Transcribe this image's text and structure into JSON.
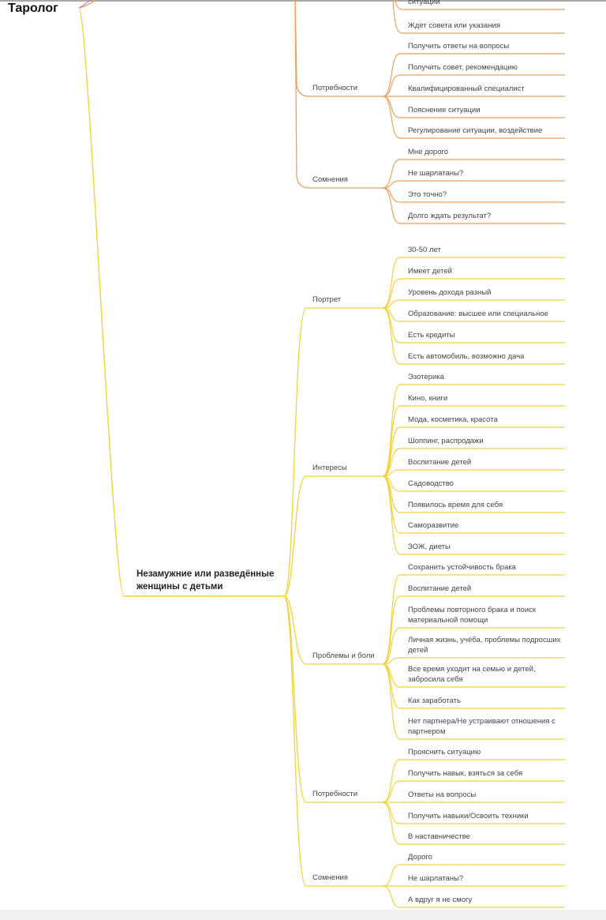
{
  "root": {
    "label": "Таролог"
  },
  "colors": {
    "orange": "#e8a25c",
    "yellow": "#efd23a",
    "text": "#444444"
  },
  "orange_branch": {
    "prefix_leaves": [
      "ситуации",
      "Ждет совета или указания"
    ],
    "groups": [
      {
        "label": "Потребности",
        "leaves": [
          "Получить ответы на вопросы",
          "Получить совет, рекомендацию",
          "Квалифицированный специалист",
          "Пояснение ситуации",
          "Регулирование ситуации, воздействие"
        ]
      },
      {
        "label": "Сомнения",
        "leaves": [
          "Мне дорого",
          "Не шарлатаны?",
          "Это точно?",
          "Долго ждать результат?"
        ]
      }
    ]
  },
  "yellow_branch": {
    "label": "Незамужние или разведённые женщины с детьми",
    "groups": [
      {
        "label": "Портрет",
        "leaves": [
          "30-50 лет",
          "Имеет детей",
          "Уровень дохода разный",
          "Образование: высшее или специальное",
          "Есть кредиты",
          "Есть автомобиль, возможно дача"
        ]
      },
      {
        "label": "Интересы",
        "leaves": [
          "Эзотерика",
          "Кино, книги",
          "Мода, косметика, красота",
          "Шоппинг, распродажи",
          "Воспитание детей",
          "Садоводство",
          "Появилось время для себя",
          "Саморазвитие",
          "ЗОЖ, диеты"
        ]
      },
      {
        "label": "Проблемы и боли",
        "leaves": [
          "Сохранить устойчивость брака",
          "Воспитание детей",
          "Проблемы повторного брака и поиск материальной помощи",
          "Личная жизнь, учёба, проблемы подросших детей",
          "Все время уходит на семью и детей, забросила себя",
          "Как заработать",
          "Нет партнера/Не устраивают отношения с партнером"
        ]
      },
      {
        "label": "Потребности",
        "leaves": [
          "Прояснить ситуацию",
          "Получить навык, взяться за себя",
          "Ответы на вопросы",
          "Получить навыки/Освоить техники",
          "В наставничестве"
        ]
      },
      {
        "label": "Сомнения",
        "leaves": [
          "Дорого",
          "Не шарлатаны?",
          "А вдруг я не смогу"
        ]
      }
    ]
  }
}
